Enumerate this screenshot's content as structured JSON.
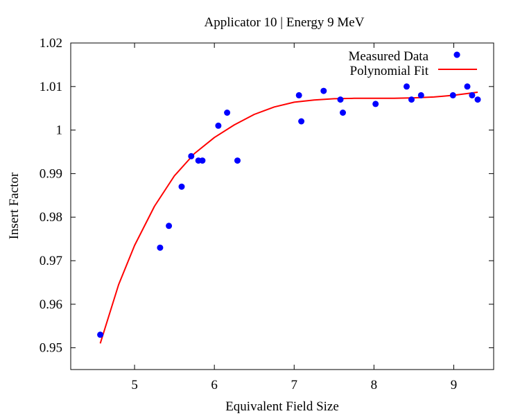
{
  "chart_data": {
    "type": "scatter",
    "title": "Applicator 10 | Energy 9 MeV",
    "xlabel": "Equivalent Field Size",
    "ylabel": "Insert Factor",
    "xlim": [
      4.2,
      9.5
    ],
    "ylim": [
      0.945,
      1.02
    ],
    "xticks": [
      5,
      6,
      7,
      8,
      9
    ],
    "yticks": [
      0.95,
      0.96,
      0.97,
      0.98,
      0.99,
      1,
      1.01,
      1.02
    ],
    "ytick_labels": [
      "0.95",
      "0.96",
      "0.97",
      "0.98",
      "0.99",
      "1",
      "1.01",
      "1.02"
    ],
    "grid": false,
    "legend_position": "top-right",
    "series": [
      {
        "name": "Measured Data",
        "kind": "points",
        "color": "#0000ff",
        "x": [
          4.57,
          5.32,
          5.43,
          5.59,
          5.71,
          5.8,
          5.85,
          6.05,
          6.16,
          6.29,
          7.06,
          7.09,
          7.37,
          7.58,
          7.61,
          8.02,
          8.41,
          8.47,
          8.59,
          8.99,
          9.04,
          9.17,
          9.23,
          9.3
        ],
        "y": [
          0.953,
          0.973,
          0.978,
          0.987,
          0.994,
          0.993,
          0.993,
          1.001,
          1.004,
          0.993,
          1.008,
          1.002,
          1.009,
          1.007,
          1.004,
          1.006,
          1.01,
          1.007,
          1.008,
          1.008,
          1.0173,
          1.01,
          1.008,
          1.007
        ]
      },
      {
        "name": "Polynomial Fit",
        "kind": "line",
        "color": "#ff0000",
        "x": [
          4.57,
          4.8,
          5.0,
          5.25,
          5.5,
          5.75,
          6.0,
          6.25,
          6.5,
          6.75,
          7.0,
          7.25,
          7.5,
          7.75,
          8.0,
          8.25,
          8.5,
          8.75,
          9.0,
          9.3
        ],
        "y": [
          0.951,
          0.9645,
          0.9735,
          0.9825,
          0.9895,
          0.9946,
          0.9983,
          1.0012,
          1.0036,
          1.0053,
          1.0064,
          1.0069,
          1.0072,
          1.0073,
          1.0073,
          1.0073,
          1.0074,
          1.0076,
          1.008,
          1.0087
        ]
      }
    ]
  }
}
